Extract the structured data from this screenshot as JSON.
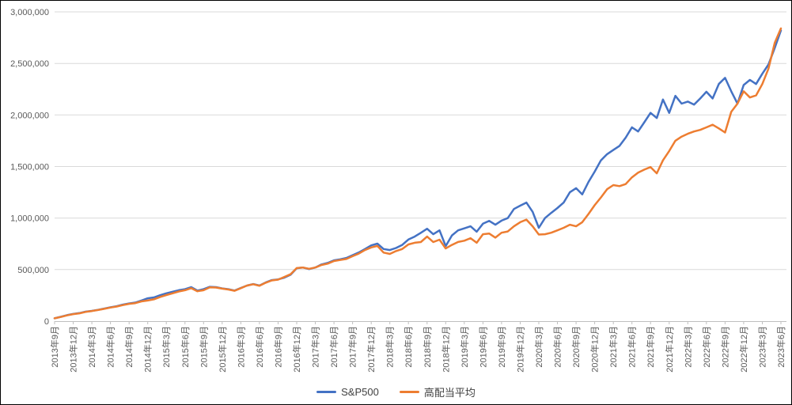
{
  "chart_data": {
    "type": "line",
    "title": "",
    "xlabel": "",
    "ylabel": "",
    "ylim": [
      0,
      3000000
    ],
    "grid": true,
    "legend_position": "bottom",
    "x_unit": "month",
    "x_range": [
      "2013年9月",
      "2023年6月"
    ],
    "x_tick_step": 3,
    "x_tick_labels": [
      "2013年9月",
      "2013年12月",
      "2014年3月",
      "2014年6月",
      "2014年9月",
      "2014年12月",
      "2015年3月",
      "2015年6月",
      "2015年9月",
      "2015年12月",
      "2016年3月",
      "2016年6月",
      "2016年9月",
      "2016年12月",
      "2017年3月",
      "2017年6月",
      "2017年9月",
      "2017年12月",
      "2018年3月",
      "2018年6月",
      "2018年9月",
      "2018年12月",
      "2019年3月",
      "2019年6月",
      "2019年9月",
      "2019年12月",
      "2020年3月",
      "2020年6月",
      "2020年9月",
      "2020年12月",
      "2021年3月",
      "2021年6月",
      "2021年9月",
      "2021年12月",
      "2022年3月",
      "2022年6月",
      "2022年9月",
      "2022年12月",
      "2023年3月",
      "2023年6月"
    ],
    "y_ticks": [
      0,
      500000,
      1000000,
      1500000,
      2000000,
      2500000,
      3000000
    ],
    "y_tick_labels": [
      "0",
      "500,000",
      "1,000,000",
      "1,500,000",
      "2,000,000",
      "2,500,000",
      "3,000,000"
    ],
    "series": [
      {
        "name": "S&P500",
        "color": "#4472C4",
        "values": [
          28000,
          42000,
          58000,
          70000,
          78000,
          92000,
          100000,
          110000,
          122000,
          134000,
          145000,
          160000,
          172000,
          180000,
          200000,
          222000,
          230000,
          252000,
          270000,
          285000,
          300000,
          310000,
          330000,
          297000,
          310000,
          333000,
          330000,
          318000,
          310000,
          297000,
          322000,
          345000,
          360000,
          345000,
          375000,
          398000,
          405000,
          422000,
          450000,
          513000,
          520000,
          505000,
          520000,
          550000,
          565000,
          590000,
          600000,
          613000,
          640000,
          666000,
          700000,
          735000,
          752000,
          700000,
          690000,
          710000,
          740000,
          792000,
          820000,
          857000,
          896000,
          843000,
          881000,
          728000,
          832000,
          881000,
          900000,
          920000,
          868000,
          945000,
          973000,
          935000,
          975000,
          1000000,
          1088000,
          1120000,
          1150000,
          1060000,
          905000,
          1000000,
          1050000,
          1097000,
          1150000,
          1250000,
          1290000,
          1230000,
          1350000,
          1450000,
          1560000,
          1620000,
          1660000,
          1700000,
          1780000,
          1880000,
          1840000,
          1930000,
          2020000,
          1970000,
          2150000,
          2020000,
          2185000,
          2110000,
          2130000,
          2100000,
          2160000,
          2225000,
          2160000,
          2300000,
          2360000,
          2230000,
          2110000,
          2290000,
          2340000,
          2300000,
          2400000,
          2490000,
          2650000,
          2820000
        ]
      },
      {
        "name": "高配当平均",
        "color": "#ED7D31",
        "values": [
          28000,
          41000,
          56000,
          68000,
          76000,
          90000,
          98000,
          108000,
          120000,
          132000,
          142000,
          156000,
          168000,
          175000,
          192000,
          200000,
          212000,
          235000,
          253000,
          270000,
          288000,
          300000,
          320000,
          290000,
          300000,
          328000,
          326000,
          315000,
          307000,
          295000,
          320000,
          345000,
          358000,
          343000,
          373000,
          395000,
          403000,
          428000,
          455000,
          515000,
          520000,
          508000,
          520000,
          545000,
          558000,
          583000,
          593000,
          603000,
          630000,
          655000,
          690000,
          715000,
          730000,
          665000,
          652000,
          680000,
          700000,
          744000,
          760000,
          767000,
          820000,
          767000,
          790000,
          705000,
          740000,
          768000,
          780000,
          805000,
          760000,
          843000,
          850000,
          810000,
          858000,
          870000,
          920000,
          960000,
          985000,
          920000,
          840000,
          843000,
          858000,
          881000,
          905000,
          935000,
          920000,
          960000,
          1040000,
          1125000,
          1200000,
          1280000,
          1320000,
          1310000,
          1330000,
          1395000,
          1440000,
          1470000,
          1495000,
          1434000,
          1560000,
          1650000,
          1750000,
          1790000,
          1818000,
          1840000,
          1855000,
          1880000,
          1905000,
          1870000,
          1830000,
          2030000,
          2110000,
          2230000,
          2170000,
          2190000,
          2300000,
          2450000,
          2700000,
          2840000
        ]
      }
    ]
  },
  "legend": {
    "items": [
      {
        "label": "S&P500",
        "color": "#4472C4"
      },
      {
        "label": "高配当平均",
        "color": "#ED7D31"
      }
    ]
  },
  "colors": {
    "background": "#FFFFFF",
    "border": "#000000",
    "grid": "#D9D9D9",
    "axis": "#BFBFBF",
    "tick_text": "#595959",
    "legend_text": "#404040"
  }
}
